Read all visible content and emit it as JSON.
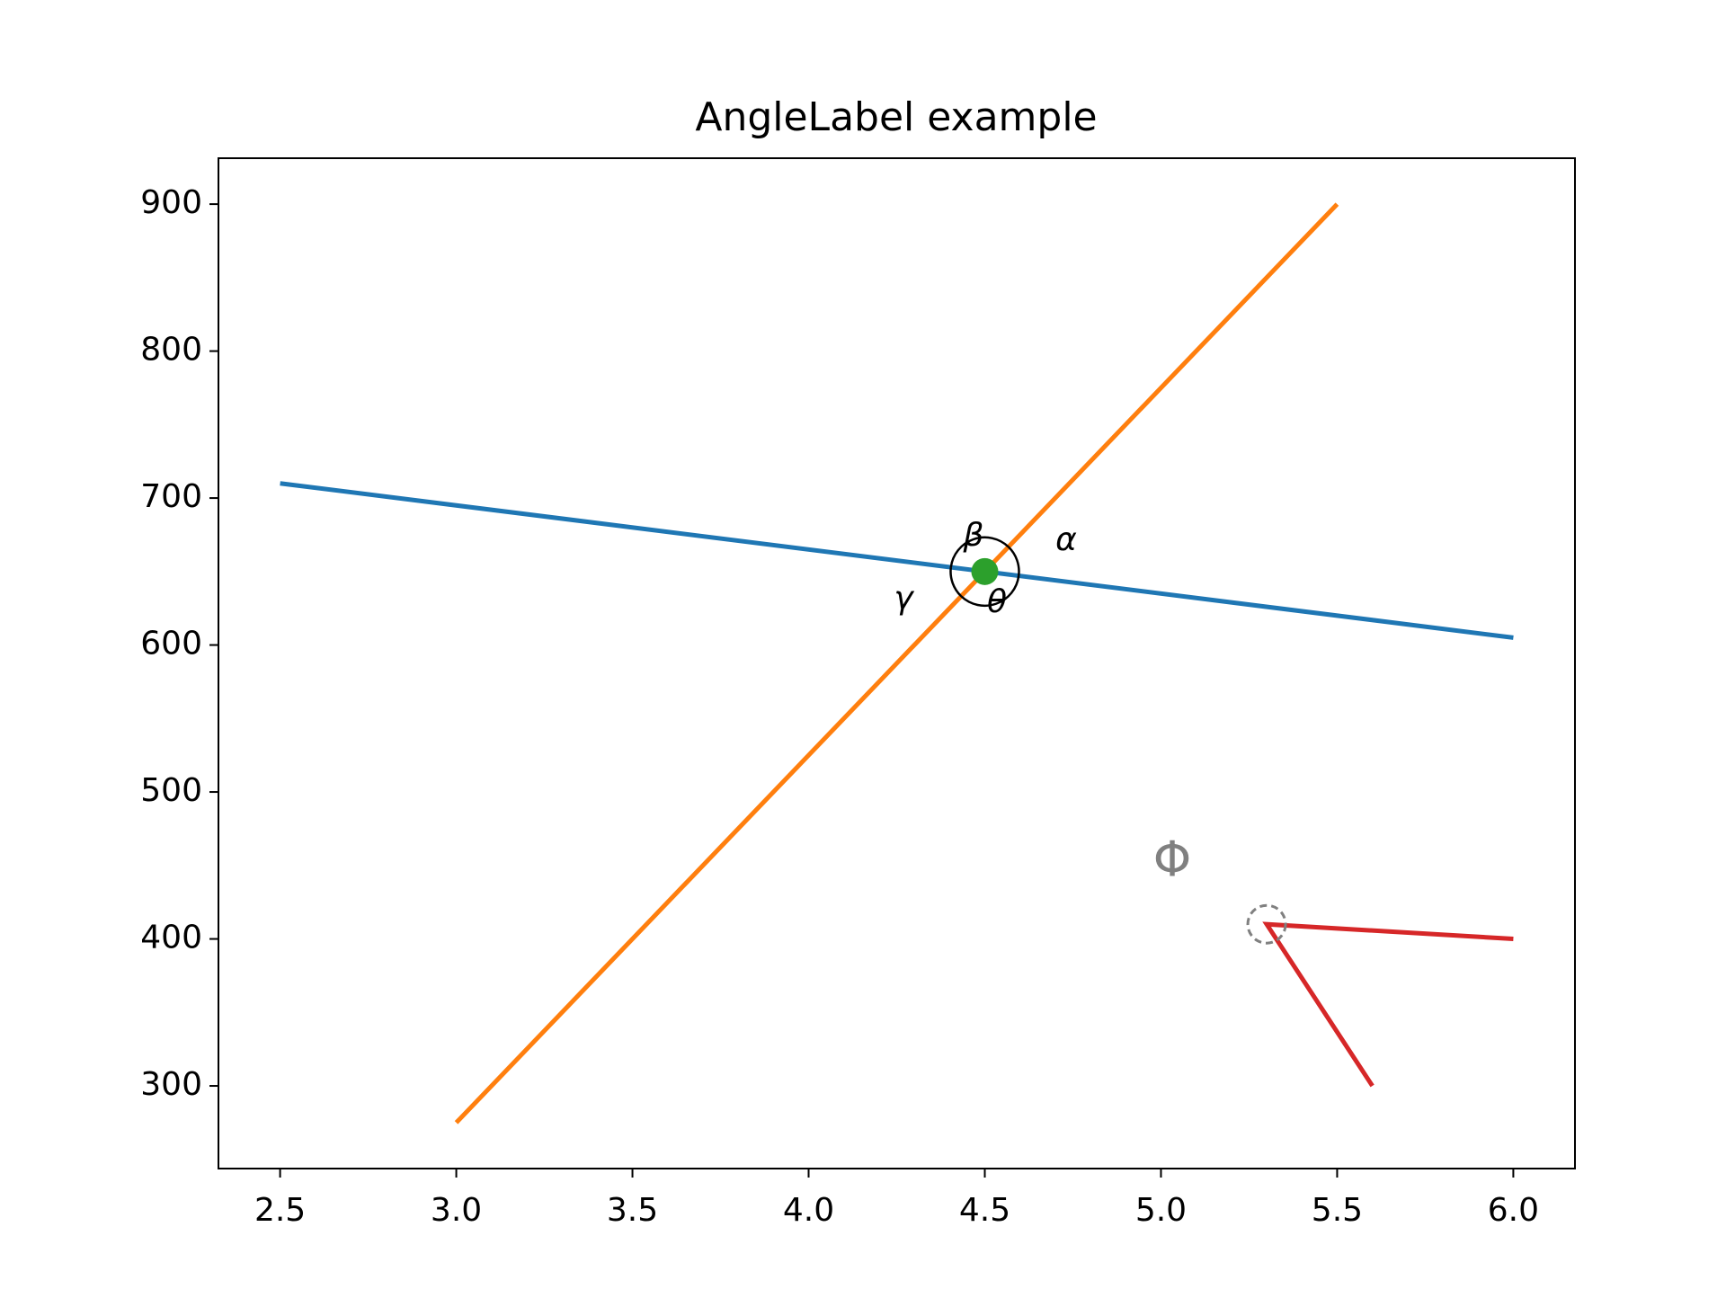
{
  "chart_data": {
    "type": "line",
    "title": "AngleLabel example",
    "series": [
      {
        "color": "#1f77b4",
        "x": [
          2.5,
          6
        ],
        "values": [
          710,
          605
        ]
      },
      {
        "color": "#ff7f0e",
        "x": [
          3,
          5.5
        ],
        "values": [
          275,
          900
        ]
      },
      {
        "color": "#d62728",
        "x": [
          6,
          5.3,
          5.6
        ],
        "values": [
          400,
          410,
          300
        ]
      }
    ],
    "points": [
      {
        "color": "#2ca02c",
        "x": 4.5,
        "y": 650
      }
    ],
    "annotations": [
      {
        "text": "α"
      },
      {
        "text": "β"
      },
      {
        "text": "γ"
      },
      {
        "text": "θ"
      },
      {
        "text": "Φ"
      }
    ],
    "xlim": [
      2.325,
      6.175
    ],
    "ylim": [
      243.75,
      931.25
    ],
    "xticks": [
      2.5,
      {
        "value": 3,
        "label": "3.0"
      },
      3.5,
      {
        "value": 4,
        "label": "4.0"
      },
      4.5,
      {
        "value": 5,
        "label": "5.0"
      },
      5.5,
      {
        "value": 6,
        "label": "6.0"
      }
    ],
    "yticks": [
      300,
      400,
      500,
      600,
      700,
      800,
      900
    ],
    "grid": false
  }
}
